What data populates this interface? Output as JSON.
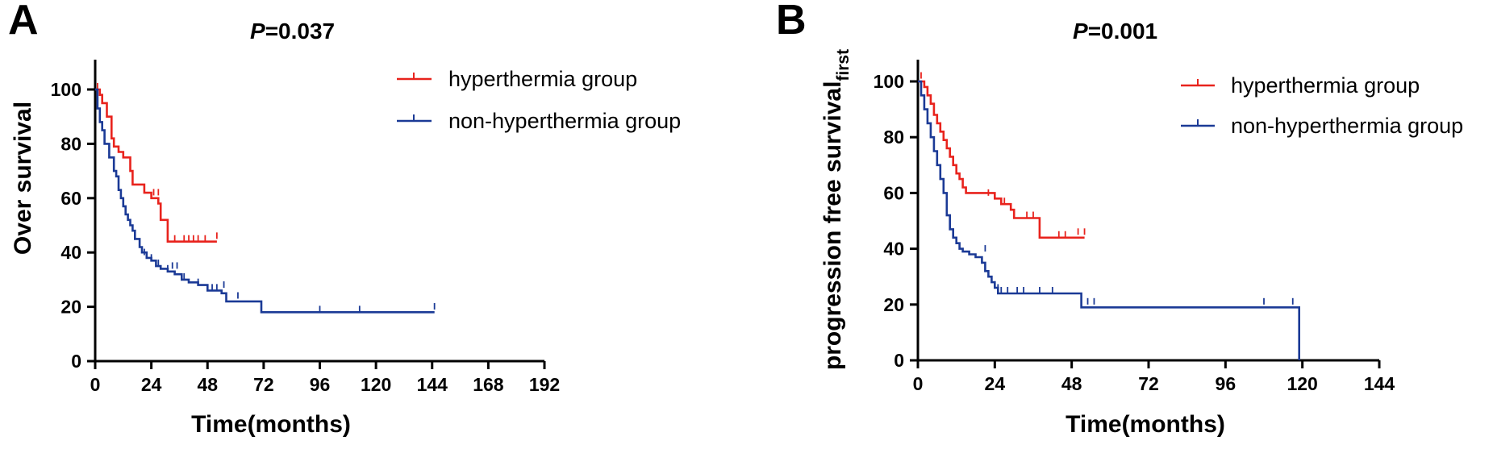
{
  "colors": {
    "hyperthermia": "#e8231d",
    "non_hyperthermia": "#1b3a96",
    "axis": "#000000"
  },
  "chart_data": [
    {
      "type": "line",
      "subtype": "kaplan-meier",
      "panel_label": "A",
      "p_prefix": "P",
      "p_value": "=0.037",
      "xlabel": "Time(months)",
      "ylabel": "Over survival",
      "ylabel_sub": "",
      "xlim": [
        0,
        192
      ],
      "ylim": [
        0,
        100
      ],
      "xticks": [
        "0",
        "24",
        "48",
        "72",
        "96",
        "120",
        "144",
        "168",
        "192"
      ],
      "yticks": [
        "0",
        "20",
        "40",
        "60",
        "80",
        "100"
      ],
      "legend_position": "top-right",
      "series": [
        {
          "name": "hyperthermia group",
          "color_key": "hyperthermia",
          "steps": [
            [
              0,
              100
            ],
            [
              2,
              98
            ],
            [
              3,
              95
            ],
            [
              5,
              90
            ],
            [
              7,
              82
            ],
            [
              8,
              79
            ],
            [
              10,
              77
            ],
            [
              12,
              75
            ],
            [
              15,
              70
            ],
            [
              16,
              65
            ],
            [
              21,
              62
            ],
            [
              24,
              60
            ],
            [
              27,
              58
            ],
            [
              28,
              52
            ],
            [
              31,
              44
            ],
            [
              52,
              44
            ]
          ],
          "censored": [
            [
              1,
              100
            ],
            [
              25,
              61
            ],
            [
              27,
              61
            ],
            [
              34,
              44
            ],
            [
              38,
              44
            ],
            [
              40,
              44
            ],
            [
              42,
              44
            ],
            [
              44,
              44
            ],
            [
              47,
              44
            ],
            [
              52,
              45
            ]
          ]
        },
        {
          "name": "non-hyperthermia group",
          "color_key": "non_hyperthermia",
          "steps": [
            [
              0,
              100
            ],
            [
              1,
              93
            ],
            [
              2,
              88
            ],
            [
              3,
              85
            ],
            [
              4,
              80
            ],
            [
              6,
              75
            ],
            [
              8,
              70
            ],
            [
              9,
              68
            ],
            [
              10,
              63
            ],
            [
              11,
              60
            ],
            [
              12,
              57
            ],
            [
              13,
              54
            ],
            [
              14,
              52
            ],
            [
              15,
              50
            ],
            [
              16,
              48
            ],
            [
              17,
              45
            ],
            [
              19,
              42
            ],
            [
              20,
              40
            ],
            [
              22,
              38
            ],
            [
              24,
              37
            ],
            [
              26,
              35
            ],
            [
              28,
              34
            ],
            [
              31,
              33
            ],
            [
              34,
              32
            ],
            [
              37,
              30
            ],
            [
              40,
              29
            ],
            [
              44,
              28
            ],
            [
              48,
              26
            ],
            [
              54,
              25
            ],
            [
              56,
              22
            ],
            [
              71,
              18
            ],
            [
              145,
              18
            ]
          ],
          "censored": [
            [
              21,
              39
            ],
            [
              24,
              37
            ],
            [
              27,
              35
            ],
            [
              31,
              33
            ],
            [
              33,
              34
            ],
            [
              35,
              34
            ],
            [
              38,
              30
            ],
            [
              44,
              28
            ],
            [
              50,
              26
            ],
            [
              52,
              26
            ],
            [
              55,
              27
            ],
            [
              61,
              23
            ],
            [
              96,
              18
            ],
            [
              113,
              18
            ],
            [
              145,
              19
            ]
          ]
        }
      ]
    },
    {
      "type": "line",
      "subtype": "kaplan-meier",
      "panel_label": "B",
      "p_prefix": "P",
      "p_value": "=0.001",
      "xlabel": "Time(months)",
      "ylabel": "progression free survival",
      "ylabel_sub": "first",
      "xlim": [
        0,
        144
      ],
      "ylim": [
        0,
        100
      ],
      "xticks": [
        "0",
        "24",
        "48",
        "72",
        "96",
        "120",
        "144"
      ],
      "yticks": [
        "0",
        "20",
        "40",
        "60",
        "80",
        "100"
      ],
      "legend_position": "top-right",
      "series": [
        {
          "name": "hyperthermia group",
          "color_key": "hyperthermia",
          "steps": [
            [
              0,
              100
            ],
            [
              2,
              98
            ],
            [
              3,
              95
            ],
            [
              4,
              92
            ],
            [
              5,
              88
            ],
            [
              6,
              85
            ],
            [
              7,
              82
            ],
            [
              8,
              79
            ],
            [
              9,
              76
            ],
            [
              10,
              73
            ],
            [
              11,
              70
            ],
            [
              12,
              67
            ],
            [
              13,
              65
            ],
            [
              14,
              62
            ],
            [
              15,
              60
            ],
            [
              24,
              58
            ],
            [
              26,
              56
            ],
            [
              29,
              54
            ],
            [
              30,
              51
            ],
            [
              38,
              44
            ],
            [
              52,
              44
            ]
          ],
          "censored": [
            [
              1,
              101
            ],
            [
              22,
              59
            ],
            [
              27,
              56
            ],
            [
              29,
              54
            ],
            [
              34,
              51
            ],
            [
              36,
              51
            ],
            [
              38,
              44
            ],
            [
              44,
              44
            ],
            [
              46,
              44
            ],
            [
              50,
              45
            ],
            [
              52,
              45
            ]
          ]
        },
        {
          "name": "non-hyperthermia group",
          "color_key": "non_hyperthermia",
          "steps": [
            [
              0,
              100
            ],
            [
              1,
              95
            ],
            [
              2,
              90
            ],
            [
              3,
              85
            ],
            [
              4,
              80
            ],
            [
              5,
              75
            ],
            [
              6,
              70
            ],
            [
              7,
              65
            ],
            [
              8,
              60
            ],
            [
              9,
              52
            ],
            [
              10,
              47
            ],
            [
              11,
              44
            ],
            [
              12,
              42
            ],
            [
              13,
              40
            ],
            [
              14,
              39
            ],
            [
              16,
              38
            ],
            [
              18,
              37
            ],
            [
              20,
              35
            ],
            [
              21,
              32
            ],
            [
              22,
              30
            ],
            [
              23,
              28
            ],
            [
              24,
              26
            ],
            [
              25,
              24
            ],
            [
              50,
              24
            ],
            [
              51,
              19
            ],
            [
              119,
              19
            ],
            [
              119,
              0
            ]
          ],
          "censored": [
            [
              21,
              39
            ],
            [
              24,
              26
            ],
            [
              25,
              25
            ],
            [
              26,
              24
            ],
            [
              28,
              24
            ],
            [
              31,
              24
            ],
            [
              33,
              24
            ],
            [
              38,
              24
            ],
            [
              42,
              24
            ],
            [
              53,
              20
            ],
            [
              55,
              20
            ],
            [
              108,
              20
            ],
            [
              117,
              20
            ]
          ]
        }
      ]
    }
  ]
}
